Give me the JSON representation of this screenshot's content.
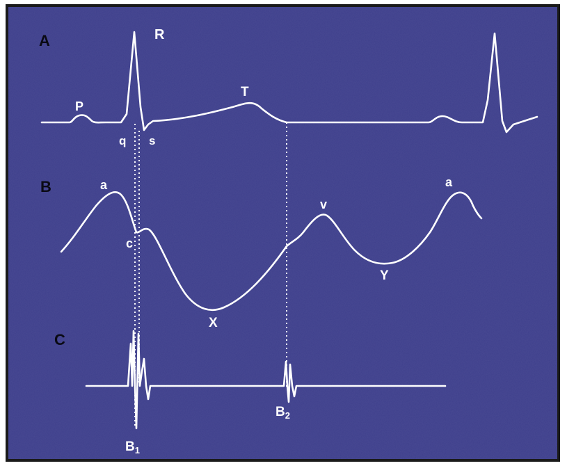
{
  "panels": {
    "a": {
      "section": "A",
      "labels": {
        "p": "P",
        "r": "R",
        "q": "q",
        "s": "s",
        "t": "T"
      }
    },
    "b": {
      "section": "B",
      "labels": {
        "a1": "a",
        "c": "c",
        "x": "X",
        "v": "v",
        "y": "Y",
        "a2": "a"
      }
    },
    "c": {
      "section": "C",
      "labels": {
        "b1": "B",
        "b1_sub": "1",
        "b2": "B",
        "b2_sub": "2"
      }
    }
  },
  "colors": {
    "background": "#3e3f8c",
    "trace": "#ffffff",
    "section_label": "#0a0a14",
    "frame": "#1a1a1a"
  }
}
